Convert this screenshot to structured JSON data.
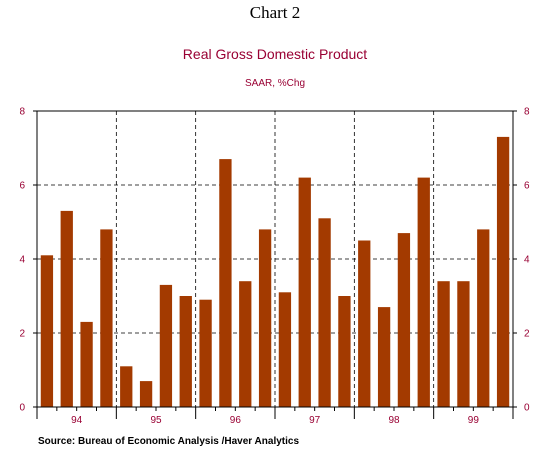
{
  "heading": "Chart 2",
  "source": "Source:  Bureau of Economic Analysis /Haver Analytics",
  "colors": {
    "bar": "#a33a00",
    "title": "#990033",
    "tick_label": "#990033",
    "axis": "#000000"
  },
  "chart_data": {
    "type": "bar",
    "title": "Real Gross Domestic Product",
    "subtitle": "SAAR, %Chg",
    "ylim": [
      0,
      8
    ],
    "yticks": [
      0,
      2,
      4,
      6,
      8
    ],
    "grid": "dashed, horizontal and vertical at year boundaries",
    "year_labels": [
      "94",
      "95",
      "96",
      "97",
      "98",
      "99"
    ],
    "quarters_per_year": 4,
    "values": [
      4.1,
      5.3,
      2.3,
      4.8,
      1.1,
      0.7,
      3.3,
      3.0,
      2.9,
      6.7,
      3.4,
      4.8,
      3.1,
      6.2,
      5.1,
      3.0,
      4.5,
      2.7,
      4.7,
      6.2,
      3.4,
      3.4,
      4.8,
      7.3
    ]
  }
}
